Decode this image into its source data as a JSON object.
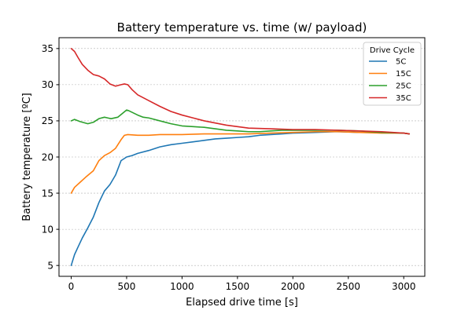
{
  "chart_data": {
    "type": "line",
    "title": "Battery temperature vs. time (w/ payload)",
    "xlabel": "Elapsed drive time [s]",
    "ylabel": "Battery temperature [ºC]",
    "xlim": [
      -110,
      3190
    ],
    "ylim": [
      3.5,
      36.5
    ],
    "xticks": [
      0,
      500,
      1000,
      1500,
      2000,
      2500,
      3000
    ],
    "yticks": [
      5,
      10,
      15,
      20,
      25,
      30,
      35
    ],
    "grid": "horizontal dashed",
    "legend": {
      "title": "Drive Cycle",
      "placement": "top-right"
    },
    "series": [
      {
        "name": "5C",
        "color": "#1f77b4",
        "x": [
          0,
          30,
          60,
          100,
          150,
          200,
          250,
          300,
          350,
          400,
          450,
          500,
          550,
          600,
          700,
          800,
          900,
          1000,
          1100,
          1200,
          1300,
          1400,
          1500,
          1600,
          1700,
          1800,
          1900,
          2000,
          2200,
          2400,
          2600,
          2800,
          3000,
          3050
        ],
        "y": [
          5.0,
          6.5,
          7.5,
          8.8,
          10.2,
          11.7,
          13.7,
          15.3,
          16.2,
          17.5,
          19.5,
          20.0,
          20.2,
          20.5,
          20.9,
          21.4,
          21.7,
          21.9,
          22.1,
          22.3,
          22.5,
          22.6,
          22.7,
          22.8,
          23.0,
          23.1,
          23.2,
          23.3,
          23.4,
          23.5,
          23.4,
          23.4,
          23.3,
          23.2
        ]
      },
      {
        "name": "15C",
        "color": "#ff7f0e",
        "x": [
          0,
          30,
          80,
          130,
          200,
          250,
          300,
          350,
          400,
          450,
          480,
          510,
          600,
          700,
          800,
          900,
          1000,
          1200,
          1400,
          1600,
          1800,
          2000,
          2200,
          2400,
          2600,
          2800,
          3000,
          3050
        ],
        "y": [
          15.0,
          15.8,
          16.5,
          17.2,
          18.1,
          19.5,
          20.2,
          20.6,
          21.2,
          22.4,
          23.0,
          23.1,
          23.0,
          23.0,
          23.1,
          23.1,
          23.1,
          23.2,
          23.2,
          23.2,
          23.3,
          23.4,
          23.5,
          23.5,
          23.4,
          23.3,
          23.3,
          23.2
        ]
      },
      {
        "name": "25C",
        "color": "#2ca02c",
        "x": [
          0,
          30,
          80,
          150,
          200,
          250,
          300,
          330,
          360,
          420,
          460,
          500,
          520,
          560,
          600,
          650,
          700,
          800,
          900,
          1000,
          1100,
          1200,
          1300,
          1400,
          1500,
          1600,
          1700,
          1800,
          1900,
          2000,
          2200,
          2400,
          2600,
          2800,
          3000,
          3050
        ],
        "y": [
          25.0,
          25.2,
          24.9,
          24.6,
          24.8,
          25.3,
          25.5,
          25.4,
          25.3,
          25.5,
          26.0,
          26.5,
          26.4,
          26.1,
          25.8,
          25.5,
          25.4,
          25.0,
          24.6,
          24.3,
          24.2,
          24.1,
          23.9,
          23.7,
          23.6,
          23.5,
          23.5,
          23.6,
          23.7,
          23.7,
          23.7,
          23.7,
          23.6,
          23.4,
          23.3,
          23.2
        ]
      },
      {
        "name": "35C",
        "color": "#d62728",
        "x": [
          0,
          30,
          60,
          100,
          150,
          200,
          250,
          300,
          350,
          400,
          450,
          480,
          510,
          550,
          600,
          700,
          800,
          900,
          1000,
          1100,
          1200,
          1300,
          1400,
          1500,
          1600,
          1800,
          2000,
          2200,
          2400,
          2600,
          2800,
          3000,
          3050
        ],
        "y": [
          35.0,
          34.6,
          33.8,
          32.8,
          32.0,
          31.4,
          31.2,
          30.8,
          30.1,
          29.8,
          30.0,
          30.1,
          30.0,
          29.3,
          28.6,
          27.8,
          27.0,
          26.3,
          25.8,
          25.4,
          25.0,
          24.7,
          24.4,
          24.2,
          24.0,
          23.9,
          23.8,
          23.8,
          23.7,
          23.6,
          23.5,
          23.3,
          23.2
        ]
      }
    ]
  }
}
